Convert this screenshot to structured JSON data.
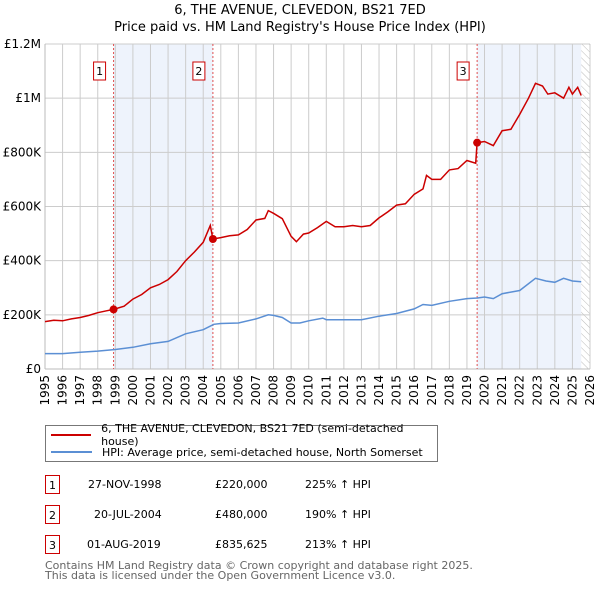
{
  "title": "6, THE AVENUE, CLEVEDON, BS21 7ED",
  "subtitle": "Price paid vs. HM Land Registry's House Price Index (HPI)",
  "colors": {
    "property": "#cc0000",
    "hpi": "#5b8fd4",
    "shade": "#eef3fc",
    "grid": "#cccccc"
  },
  "chart_data": {
    "type": "line",
    "title": "6, THE AVENUE, CLEVEDON, BS21 7ED",
    "subtitle": "Price paid vs. HM Land Registry's House Price Index (HPI)",
    "xlim": [
      1995,
      2026
    ],
    "ylim": [
      0,
      1200000
    ],
    "x_ticks": [
      "1995",
      "1996",
      "1997",
      "1998",
      "1999",
      "2000",
      "2001",
      "2002",
      "2003",
      "2004",
      "2005",
      "2006",
      "2007",
      "2008",
      "2009",
      "2010",
      "2011",
      "2012",
      "2013",
      "2014",
      "2015",
      "2016",
      "2017",
      "2018",
      "2019",
      "2020",
      "2021",
      "2022",
      "2023",
      "2024",
      "2025",
      "2026"
    ],
    "y_ticks": [
      {
        "v": 0,
        "label": "£0"
      },
      {
        "v": 200000,
        "label": "£200K"
      },
      {
        "v": 400000,
        "label": "£400K"
      },
      {
        "v": 600000,
        "label": "£600K"
      },
      {
        "v": 800000,
        "label": "£800K"
      },
      {
        "v": 1000000,
        "label": "£1M"
      },
      {
        "v": 1200000,
        "label": "£1.2M"
      }
    ],
    "grid": true,
    "series": [
      {
        "name": "6, THE AVENUE, CLEVEDON, BS21 7ED (semi-detached house)",
        "color": "#cc0000",
        "x": [
          1995,
          1995.5,
          1996,
          1996.5,
          1997,
          1997.5,
          1998,
          1998.5,
          1998.9,
          1999.5,
          2000,
          2000.5,
          2001,
          2001.5,
          2002,
          2002.5,
          2003,
          2003.5,
          2004,
          2004.4,
          2004.55,
          2005,
          2005.5,
          2006,
          2006.5,
          2007,
          2007.5,
          2007.7,
          2008,
          2008.5,
          2009,
          2009.3,
          2009.7,
          2010,
          2010.5,
          2011,
          2011.5,
          2012,
          2012.5,
          2013,
          2013.5,
          2014,
          2014.5,
          2015,
          2015.5,
          2016,
          2016.5,
          2016.7,
          2017,
          2017.5,
          2018,
          2018.5,
          2019,
          2019.5,
          2019.58,
          2020,
          2020.5,
          2021,
          2021.5,
          2022,
          2022.5,
          2022.9,
          2023.3,
          2023.6,
          2024,
          2024.5,
          2024.8,
          2025,
          2025.3,
          2025.5
        ],
        "y": [
          175000,
          180000,
          178000,
          185000,
          190000,
          198000,
          208000,
          215000,
          220000,
          232000,
          258000,
          275000,
          300000,
          312000,
          330000,
          360000,
          400000,
          432000,
          468000,
          530000,
          480000,
          485000,
          492000,
          495000,
          515000,
          550000,
          556000,
          585000,
          575000,
          555000,
          490000,
          470000,
          498000,
          502000,
          522000,
          545000,
          525000,
          525000,
          530000,
          525000,
          530000,
          558000,
          580000,
          605000,
          610000,
          645000,
          665000,
          715000,
          700000,
          700000,
          735000,
          740000,
          770000,
          760000,
          835625,
          840000,
          825000,
          880000,
          885000,
          940000,
          1000000,
          1055000,
          1045000,
          1015000,
          1020000,
          1000000,
          1040000,
          1015000,
          1040000,
          1010000
        ]
      },
      {
        "name": "HPI: Average price, semi-detached house, North Somerset",
        "color": "#5b8fd4",
        "x": [
          1995,
          1996,
          1997,
          1998,
          1999,
          2000,
          2001,
          2002,
          2003,
          2004,
          2004.6,
          2005,
          2006,
          2007,
          2007.7,
          2008,
          2008.5,
          2009,
          2009.5,
          2010,
          2010.8,
          2011,
          2012,
          2013,
          2014,
          2015,
          2016,
          2016.5,
          2017,
          2018,
          2019,
          2019.6,
          2020,
          2020.5,
          2021,
          2022,
          2022.9,
          2023.5,
          2024,
          2024.5,
          2025,
          2025.5
        ],
        "y": [
          57000,
          57000,
          62000,
          66000,
          72000,
          80000,
          93000,
          102000,
          130000,
          145000,
          165000,
          168000,
          170000,
          185000,
          200000,
          198000,
          190000,
          170000,
          170000,
          178000,
          188000,
          182000,
          182000,
          182000,
          195000,
          205000,
          222000,
          238000,
          235000,
          250000,
          260000,
          262000,
          266000,
          260000,
          278000,
          290000,
          335000,
          325000,
          320000,
          335000,
          325000,
          322000
        ]
      }
    ],
    "sales": [
      {
        "n": "1",
        "x": 1998.9,
        "y": 220000
      },
      {
        "n": "2",
        "x": 2004.55,
        "y": 480000
      },
      {
        "n": "3",
        "x": 2019.58,
        "y": 835625
      }
    ],
    "shaded_ranges": [
      [
        1998.9,
        2004.55
      ],
      [
        2019.58,
        2025.5
      ]
    ],
    "hatched_from": 2025.5,
    "legend_placement": "below"
  },
  "legend": {
    "property": "6, THE AVENUE, CLEVEDON, BS21 7ED (semi-detached house)",
    "hpi": "HPI: Average price, semi-detached house, North Somerset"
  },
  "transactions": [
    {
      "n": "1",
      "date": "27-NOV-1998",
      "price": "£220,000",
      "hpi": "225% ↑ HPI"
    },
    {
      "n": "2",
      "date": "20-JUL-2004",
      "price": "£480,000",
      "hpi": "190% ↑ HPI"
    },
    {
      "n": "3",
      "date": "01-AUG-2019",
      "price": "£835,625",
      "hpi": "213% ↑ HPI"
    }
  ],
  "footer": {
    "line1": "Contains HM Land Registry data © Crown copyright and database right 2025.",
    "line2": "This data is licensed under the Open Government Licence v3.0."
  }
}
